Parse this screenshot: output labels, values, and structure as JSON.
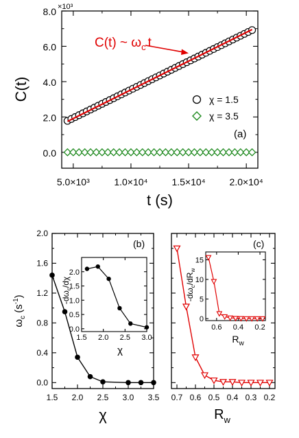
{
  "colors": {
    "axis": "#000000",
    "fit": "#e00000",
    "green": "#1f8a1f",
    "red_marker": "#e00000"
  },
  "chart_data": [
    {
      "id": "a",
      "type": "scatter",
      "panel_label": "(a)",
      "xlabel": "t (s)",
      "ylabel": "C(t)",
      "exponent": "×10³",
      "xlim": [
        4000,
        21000
      ],
      "ylim": [
        -0.9,
        8.0
      ],
      "xticks": [
        5000,
        10000,
        15000,
        20000
      ],
      "xtick_labels": [
        "5.0×10³",
        "1.0×10⁴",
        "1.5×10⁴",
        "2.0×10⁴"
      ],
      "yticks": [
        0,
        2,
        4,
        6,
        8
      ],
      "ytick_labels": [
        "0.0",
        "2.0",
        "4.0",
        "6.0",
        "8.0"
      ],
      "annotation": "C(t) ~ ω_c t",
      "annotation_parts": {
        "lhs": "C(t) ~ ω",
        "sub": "c",
        "rhs": "t"
      },
      "fit_line": {
        "x": [
          4500,
          20500
        ],
        "y": [
          1.75,
          6.95
        ]
      },
      "legend_position": "middle-right",
      "series": [
        {
          "name": "χ = 1.5",
          "marker": "circle",
          "color": "#000000",
          "x_start": 4500,
          "x_end": 20500,
          "n": 49,
          "y_start": 1.78,
          "y_end": 6.92
        },
        {
          "name": "χ = 3.5",
          "marker": "diamond",
          "color": "#1f8a1f",
          "x_start": 4500,
          "x_end": 20500,
          "n": 33,
          "y_start": 0.0,
          "y_end": 0.0
        }
      ]
    },
    {
      "id": "b",
      "type": "line",
      "panel_label": "(b)",
      "xlabel": "χ",
      "ylabel": "ω_c (s⁻¹)",
      "ylabel_parts": {
        "main": "ω",
        "sub": "c",
        "unit": " (s",
        "sup": "-1",
        "close": ")"
      },
      "xlim": [
        1.5,
        3.5
      ],
      "ylim": [
        -0.08,
        2.0
      ],
      "xticks": [
        1.5,
        2.0,
        2.5,
        3.0,
        3.5
      ],
      "xtick_labels": [
        "1.5",
        "2.0",
        "2.5",
        "3.0",
        "3.5"
      ],
      "yticks": [
        0,
        0.4,
        0.8,
        1.2,
        1.6,
        2.0
      ],
      "ytick_labels": [
        "0.0",
        "0.4",
        "0.8",
        "1.2",
        "1.6",
        "2.0"
      ],
      "series": [
        {
          "marker": "filled-circle",
          "color": "#000000",
          "x": [
            1.5,
            1.75,
            2.0,
            2.25,
            2.5,
            3.0,
            3.25,
            3.5
          ],
          "y": [
            1.44,
            0.95,
            0.34,
            0.08,
            0.01,
            0.0,
            0.0,
            0.0
          ]
        }
      ],
      "inset": {
        "xlabel": "χ",
        "ylabel": "-dω_c/dχ",
        "ylabel_parts": {
          "a": "-dω",
          "sub": "c",
          "b": "/dχ"
        },
        "xlim": [
          1.5,
          3.0
        ],
        "ylim": [
          -0.1,
          2.5
        ],
        "xticks": [
          1.5,
          2.0,
          2.5,
          3.0
        ],
        "xtick_labels": [
          "1.5",
          "2.0",
          "2.5",
          "3.0"
        ],
        "yticks": [
          0,
          0.5,
          1.0,
          1.5,
          2.0
        ],
        "ytick_labels": [
          "0.0",
          "0.5",
          "1.0",
          "1.5",
          "2.0"
        ],
        "x": [
          1.625,
          1.875,
          2.125,
          2.375,
          2.625,
          3.0
        ],
        "y": [
          2.1,
          2.18,
          1.75,
          0.72,
          0.18,
          0.05
        ]
      }
    },
    {
      "id": "c",
      "type": "line",
      "panel_label": "(c)",
      "xlabel": "R_w",
      "xlabel_parts": {
        "main": "R",
        "sub": "w"
      },
      "xlim": [
        0.7,
        0.2
      ],
      "ylim": [
        -0.08,
        2.0
      ],
      "xticks": [
        0.7,
        0.6,
        0.5,
        0.4,
        0.3,
        0.2
      ],
      "xtick_labels": [
        "0.7",
        "0.6",
        "0.5",
        "0.4",
        "0.3",
        "0.2"
      ],
      "yticks": [
        0,
        0.4,
        0.8,
        1.2,
        1.6,
        2.0
      ],
      "series": [
        {
          "marker": "open-triangle-down",
          "color": "#e00000",
          "x": [
            0.7,
            0.65,
            0.6,
            0.55,
            0.5,
            0.45,
            0.4,
            0.35,
            0.3,
            0.25,
            0.2
          ],
          "y": [
            1.8,
            1.02,
            0.34,
            0.1,
            0.03,
            0.01,
            0.01,
            0.0,
            0.0,
            0.0,
            0.0
          ]
        }
      ],
      "inset": {
        "xlabel": "R_w",
        "xlabel_parts": {
          "main": "R",
          "sub": "w"
        },
        "ylabel": "-dω_c/dR_w",
        "ylabel_parts": {
          "a": "-dω",
          "sub": "c",
          "b": "/dR",
          "sub2": "w"
        },
        "xlim": [
          0.675,
          0.175
        ],
        "ylim": [
          -0.5,
          17
        ],
        "xticks": [
          0.6,
          0.4,
          0.2
        ],
        "xtick_labels": [
          "0.6",
          "0.4",
          "0.2"
        ],
        "yticks": [
          0,
          5,
          10,
          15
        ],
        "ytick_labels": [
          "0",
          "5",
          "10",
          "15"
        ],
        "x": [
          0.675,
          0.625,
          0.575,
          0.525,
          0.475,
          0.425,
          0.375,
          0.325,
          0.275,
          0.225,
          0.175
        ],
        "y": [
          15.6,
          9.5,
          1.3,
          0.5,
          0.2,
          0.1,
          0.05,
          0.0,
          0.0,
          0.0,
          0.0
        ]
      }
    }
  ]
}
